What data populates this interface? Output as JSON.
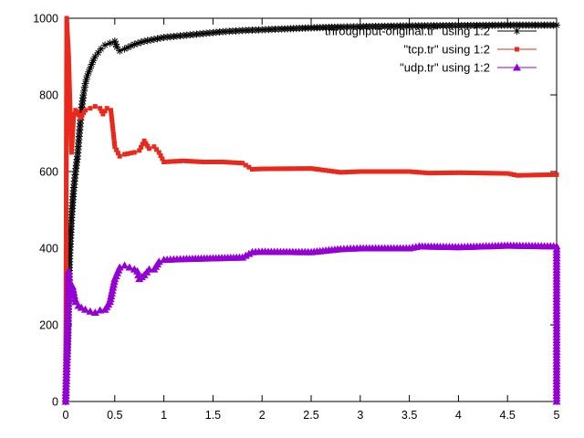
{
  "chart_data": {
    "type": "line",
    "xlim": [
      0,
      5
    ],
    "ylim": [
      0,
      1000
    ],
    "x_ticks": [
      "0",
      "0.5",
      "1",
      "1.5",
      "2",
      "2.5",
      "3",
      "3.5",
      "4",
      "4.5",
      "5"
    ],
    "y_ticks": [
      "0",
      "200",
      "400",
      "600",
      "800",
      "1000"
    ],
    "grid": false,
    "legend_position": "top-right",
    "series": [
      {
        "name": "\"throughput-original.tr\" using 1:2",
        "color": "#000000",
        "marker": "star",
        "points": [
          [
            0.0,
            0
          ],
          [
            0.02,
            150
          ],
          [
            0.04,
            380
          ],
          [
            0.06,
            480
          ],
          [
            0.08,
            550
          ],
          [
            0.1,
            600
          ],
          [
            0.12,
            640
          ],
          [
            0.14,
            700
          ],
          [
            0.16,
            760
          ],
          [
            0.18,
            800
          ],
          [
            0.2,
            830
          ],
          [
            0.22,
            850
          ],
          [
            0.25,
            870
          ],
          [
            0.28,
            890
          ],
          [
            0.3,
            900
          ],
          [
            0.33,
            910
          ],
          [
            0.36,
            920
          ],
          [
            0.4,
            930
          ],
          [
            0.45,
            935
          ],
          [
            0.5,
            940
          ],
          [
            0.52,
            925
          ],
          [
            0.55,
            915
          ],
          [
            0.6,
            920
          ],
          [
            0.7,
            932
          ],
          [
            0.8,
            940
          ],
          [
            0.9,
            945
          ],
          [
            1.0,
            950
          ],
          [
            1.2,
            955
          ],
          [
            1.4,
            960
          ],
          [
            1.6,
            965
          ],
          [
            1.8,
            968
          ],
          [
            2.0,
            970
          ],
          [
            2.2,
            972
          ],
          [
            2.5,
            975
          ],
          [
            2.8,
            977
          ],
          [
            3.0,
            978
          ],
          [
            3.5,
            980
          ],
          [
            4.0,
            981
          ],
          [
            4.5,
            982
          ],
          [
            5.0,
            982
          ]
        ]
      },
      {
        "name": "\"tcp.tr\" using 1:2",
        "color": "#e8291c",
        "marker": "square",
        "points": [
          [
            0.0,
            0
          ],
          [
            0.01,
            1000
          ],
          [
            0.03,
            900
          ],
          [
            0.05,
            720
          ],
          [
            0.06,
            650
          ],
          [
            0.08,
            740
          ],
          [
            0.1,
            760
          ],
          [
            0.12,
            755
          ],
          [
            0.15,
            740
          ],
          [
            0.2,
            760
          ],
          [
            0.25,
            765
          ],
          [
            0.3,
            770
          ],
          [
            0.35,
            765
          ],
          [
            0.38,
            750
          ],
          [
            0.42,
            765
          ],
          [
            0.46,
            760
          ],
          [
            0.5,
            665
          ],
          [
            0.55,
            640
          ],
          [
            0.6,
            645
          ],
          [
            0.7,
            650
          ],
          [
            0.75,
            655
          ],
          [
            0.8,
            680
          ],
          [
            0.85,
            660
          ],
          [
            0.9,
            665
          ],
          [
            0.95,
            650
          ],
          [
            1.0,
            625
          ],
          [
            1.2,
            628
          ],
          [
            1.4,
            625
          ],
          [
            1.6,
            625
          ],
          [
            1.8,
            622
          ],
          [
            1.9,
            606
          ],
          [
            2.0,
            607
          ],
          [
            2.5,
            608
          ],
          [
            2.8,
            598
          ],
          [
            3.0,
            600
          ],
          [
            3.5,
            600
          ],
          [
            3.7,
            596
          ],
          [
            4.0,
            597
          ],
          [
            4.5,
            595
          ],
          [
            4.6,
            590
          ],
          [
            5.0,
            592
          ]
        ]
      },
      {
        "name": "\"udp.tr\" using 1:2",
        "color": "#9400d3",
        "marker": "triangle",
        "points": [
          [
            0.0,
            0
          ],
          [
            0.02,
            200
          ],
          [
            0.03,
            340
          ],
          [
            0.05,
            280
          ],
          [
            0.07,
            300
          ],
          [
            0.1,
            260
          ],
          [
            0.13,
            250
          ],
          [
            0.16,
            245
          ],
          [
            0.2,
            240
          ],
          [
            0.25,
            235
          ],
          [
            0.3,
            232
          ],
          [
            0.35,
            238
          ],
          [
            0.4,
            240
          ],
          [
            0.45,
            260
          ],
          [
            0.5,
            320
          ],
          [
            0.55,
            350
          ],
          [
            0.6,
            355
          ],
          [
            0.65,
            350
          ],
          [
            0.7,
            345
          ],
          [
            0.73,
            340
          ],
          [
            0.75,
            320
          ],
          [
            0.8,
            330
          ],
          [
            0.85,
            345
          ],
          [
            0.9,
            345
          ],
          [
            0.95,
            365
          ],
          [
            1.0,
            370
          ],
          [
            1.2,
            372
          ],
          [
            1.5,
            374
          ],
          [
            1.8,
            376
          ],
          [
            1.9,
            390
          ],
          [
            2.0,
            391
          ],
          [
            2.5,
            390
          ],
          [
            2.8,
            398
          ],
          [
            3.0,
            400
          ],
          [
            3.5,
            400
          ],
          [
            3.6,
            405
          ],
          [
            4.0,
            403
          ],
          [
            4.5,
            407
          ],
          [
            5.0,
            405
          ],
          [
            5.0,
            0
          ]
        ]
      }
    ]
  }
}
